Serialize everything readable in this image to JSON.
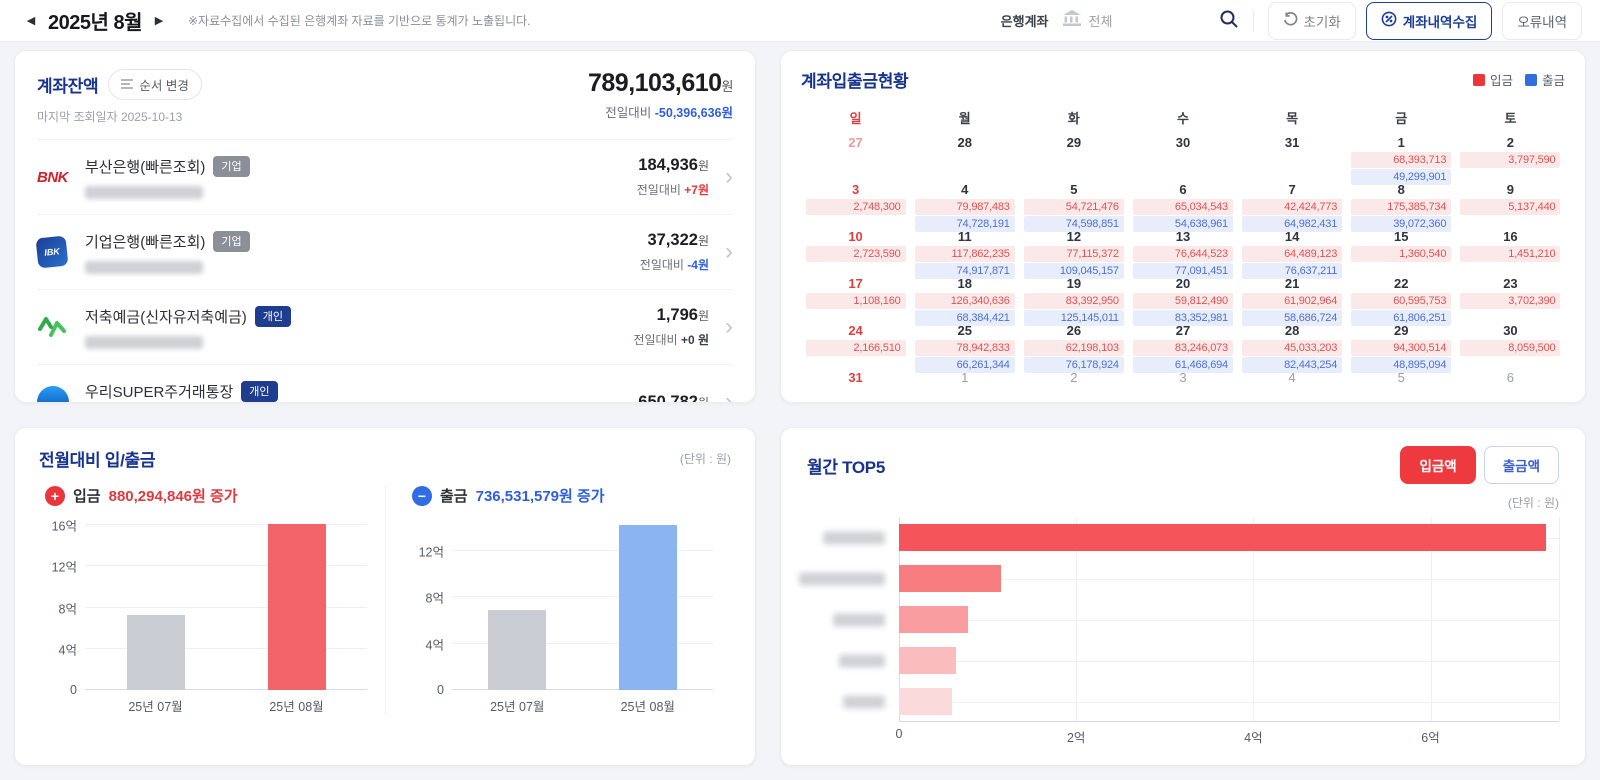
{
  "topbar": {
    "month": "2025년 8월",
    "notice": "※자료수집에서 수집된 은행계좌 자료를 기반으로 통계가 노출됩니다.",
    "bank_filter_label": "은행계좌",
    "bank_filter_value": "전체",
    "reset": "초기화",
    "collect": "계좌내역수집",
    "errors": "오류내역"
  },
  "balance": {
    "title": "계좌잔액",
    "reorder": "순서 변경",
    "last_checked": "마지막 조회일자 2025-10-13",
    "total": "789,103,610",
    "won": "원",
    "diff_label": "전일대비",
    "diff_value": "-50,396,636원",
    "accounts": [
      {
        "logo": "bnk",
        "name": "부산은행(빠른조회)",
        "badge": "기업",
        "badge_style": "corp",
        "amount": "184,936",
        "diff_label": "전일대비",
        "diff": "+7원",
        "diff_color": "red"
      },
      {
        "logo": "ibk",
        "name": "기업은행(빠른조회)",
        "badge": "기업",
        "badge_style": "corp",
        "amount": "37,322",
        "diff_label": "전일대비",
        "diff": "-4원",
        "diff_color": "blue"
      },
      {
        "logo": "mg",
        "name": "저축예금(신자유저축예금)",
        "badge": "개인",
        "badge_style": "personal",
        "amount": "1,796",
        "diff_label": "전일대비",
        "diff": "+0 원",
        "diff_color": "dark"
      },
      {
        "logo": "woori",
        "name": "우리SUPER주거래통장",
        "badge": "개인",
        "badge_style": "personal",
        "amount": "650,782",
        "diff_label": "",
        "diff": "",
        "diff_color": "dark"
      }
    ]
  },
  "calendar": {
    "title": "계좌입출금현황",
    "legend_in": "입금",
    "legend_out": "출금",
    "legend_in_color": "#e8363c",
    "legend_out_color": "#2f6de0",
    "weekdays": [
      "일",
      "월",
      "화",
      "수",
      "목",
      "금",
      "토"
    ],
    "weeks": [
      [
        {
          "d": "27",
          "t": "prev-sun"
        },
        {
          "d": "28",
          "t": "prev"
        },
        {
          "d": "29",
          "t": "prev"
        },
        {
          "d": "30",
          "t": "prev"
        },
        {
          "d": "31",
          "t": "prev"
        },
        {
          "d": "1",
          "t": "cur",
          "in": "68,393,713",
          "out": "49,299,901"
        },
        {
          "d": "2",
          "t": "cur",
          "in": "3,797,590"
        }
      ],
      [
        {
          "d": "3",
          "t": "sun",
          "in": "2,748,300"
        },
        {
          "d": "4",
          "t": "cur",
          "in": "79,987,483",
          "out": "74,728,191"
        },
        {
          "d": "5",
          "t": "cur",
          "in": "54,721,476",
          "out": "74,598,851"
        },
        {
          "d": "6",
          "t": "cur",
          "in": "65,034,543",
          "out": "54,638,961"
        },
        {
          "d": "7",
          "t": "cur",
          "in": "42,424,773",
          "out": "64,982,431"
        },
        {
          "d": "8",
          "t": "cur",
          "in": "175,385,734",
          "out": "39,072,360"
        },
        {
          "d": "9",
          "t": "cur",
          "in": "5,137,440"
        }
      ],
      [
        {
          "d": "10",
          "t": "sun",
          "in": "2,723,590"
        },
        {
          "d": "11",
          "t": "cur",
          "in": "117,862,235",
          "out": "74,917,871"
        },
        {
          "d": "12",
          "t": "cur",
          "in": "77,115,372",
          "out": "109,045,157"
        },
        {
          "d": "13",
          "t": "cur",
          "in": "76,644,523",
          "out": "77,091,451"
        },
        {
          "d": "14",
          "t": "cur",
          "in": "64,489,123",
          "out": "76,637,211"
        },
        {
          "d": "15",
          "t": "cur",
          "in": "1,360,540"
        },
        {
          "d": "16",
          "t": "cur",
          "in": "1,451,210"
        }
      ],
      [
        {
          "d": "17",
          "t": "sun",
          "in": "1,108,160"
        },
        {
          "d": "18",
          "t": "cur",
          "in": "126,340,636",
          "out": "68,384,421"
        },
        {
          "d": "19",
          "t": "cur",
          "in": "83,392,950",
          "out": "125,145,011"
        },
        {
          "d": "20",
          "t": "cur",
          "in": "59,812,490",
          "out": "83,352,981"
        },
        {
          "d": "21",
          "t": "cur",
          "in": "61,902,964",
          "out": "58,686,724"
        },
        {
          "d": "22",
          "t": "cur",
          "in": "60,595,753",
          "out": "61,806,251"
        },
        {
          "d": "23",
          "t": "cur",
          "in": "3,702,390"
        }
      ],
      [
        {
          "d": "24",
          "t": "sun",
          "in": "2,166,510"
        },
        {
          "d": "25",
          "t": "cur",
          "in": "78,942,833",
          "out": "66,261,344"
        },
        {
          "d": "26",
          "t": "cur",
          "in": "62,198,103",
          "out": "76,178,924"
        },
        {
          "d": "27",
          "t": "cur",
          "in": "83,246,073",
          "out": "61,468,694"
        },
        {
          "d": "28",
          "t": "cur",
          "in": "45,033,203",
          "out": "82,443,254"
        },
        {
          "d": "29",
          "t": "cur",
          "in": "94,300,514",
          "out": "48,895,094"
        },
        {
          "d": "30",
          "t": "cur",
          "in": "8,059,500"
        }
      ],
      [
        {
          "d": "31",
          "t": "sun"
        },
        {
          "d": "1",
          "t": "next"
        },
        {
          "d": "2",
          "t": "next"
        },
        {
          "d": "3",
          "t": "next"
        },
        {
          "d": "4",
          "t": "next"
        },
        {
          "d": "5",
          "t": "next"
        },
        {
          "d": "6",
          "t": "next"
        }
      ]
    ]
  },
  "compare": {
    "title": "전월대비 입/출금",
    "unit": "(단위 : 원)",
    "in_label": "입금",
    "in_change": "880,294,846원 증가",
    "out_label": "출금",
    "out_change": "736,531,579원 증가"
  },
  "top5": {
    "title": "월간 TOP5",
    "btn_in": "입금액",
    "btn_out": "출금액",
    "unit": "(단위 : 원)"
  },
  "chart_data": [
    {
      "type": "bar",
      "name": "전월대비 입금",
      "categories": [
        "25년 07월",
        "25년 08월"
      ],
      "values": [
        730000000,
        1610000000
      ],
      "bar_colors": [
        "#c9ccd2",
        "#f3646a"
      ],
      "yticks": [
        {
          "label": "0",
          "value": 0
        },
        {
          "label": "4억",
          "value": 400000000
        },
        {
          "label": "8억",
          "value": 800000000
        },
        {
          "label": "12억",
          "value": 1200000000
        },
        {
          "label": "16억",
          "value": 1600000000
        }
      ],
      "ylim": [
        0,
        1630000000
      ],
      "grid": true,
      "legend": "none"
    },
    {
      "type": "bar",
      "name": "전월대비 출금",
      "categories": [
        "25년 07월",
        "25년 08월"
      ],
      "values": [
        690000000,
        1427000000
      ],
      "bar_colors": [
        "#c9ccd2",
        "#8ab5f2"
      ],
      "yticks": [
        {
          "label": "0",
          "value": 0
        },
        {
          "label": "4억",
          "value": 400000000
        },
        {
          "label": "8억",
          "value": 800000000
        },
        {
          "label": "12억",
          "value": 1200000000
        }
      ],
      "ylim": [
        0,
        1450000000
      ],
      "grid": true,
      "legend": "none"
    },
    {
      "type": "bar",
      "orientation": "horizontal",
      "name": "월간 TOP5 입금액",
      "labels_blurred": true,
      "label_widths": [
        62,
        86,
        52,
        46,
        42
      ],
      "values": [
        730000000,
        115000000,
        78000000,
        64000000,
        60000000
      ],
      "bar_colors": [
        "#f4545a",
        "#f77d81",
        "#f99da0",
        "#fbbcbe",
        "#fcd9da"
      ],
      "xticks": [
        {
          "label": "0",
          "value": 0
        },
        {
          "label": "2억",
          "value": 200000000
        },
        {
          "label": "4억",
          "value": 400000000
        },
        {
          "label": "6억",
          "value": 600000000
        }
      ],
      "xlim": [
        0,
        745000000
      ],
      "grid": true
    }
  ]
}
